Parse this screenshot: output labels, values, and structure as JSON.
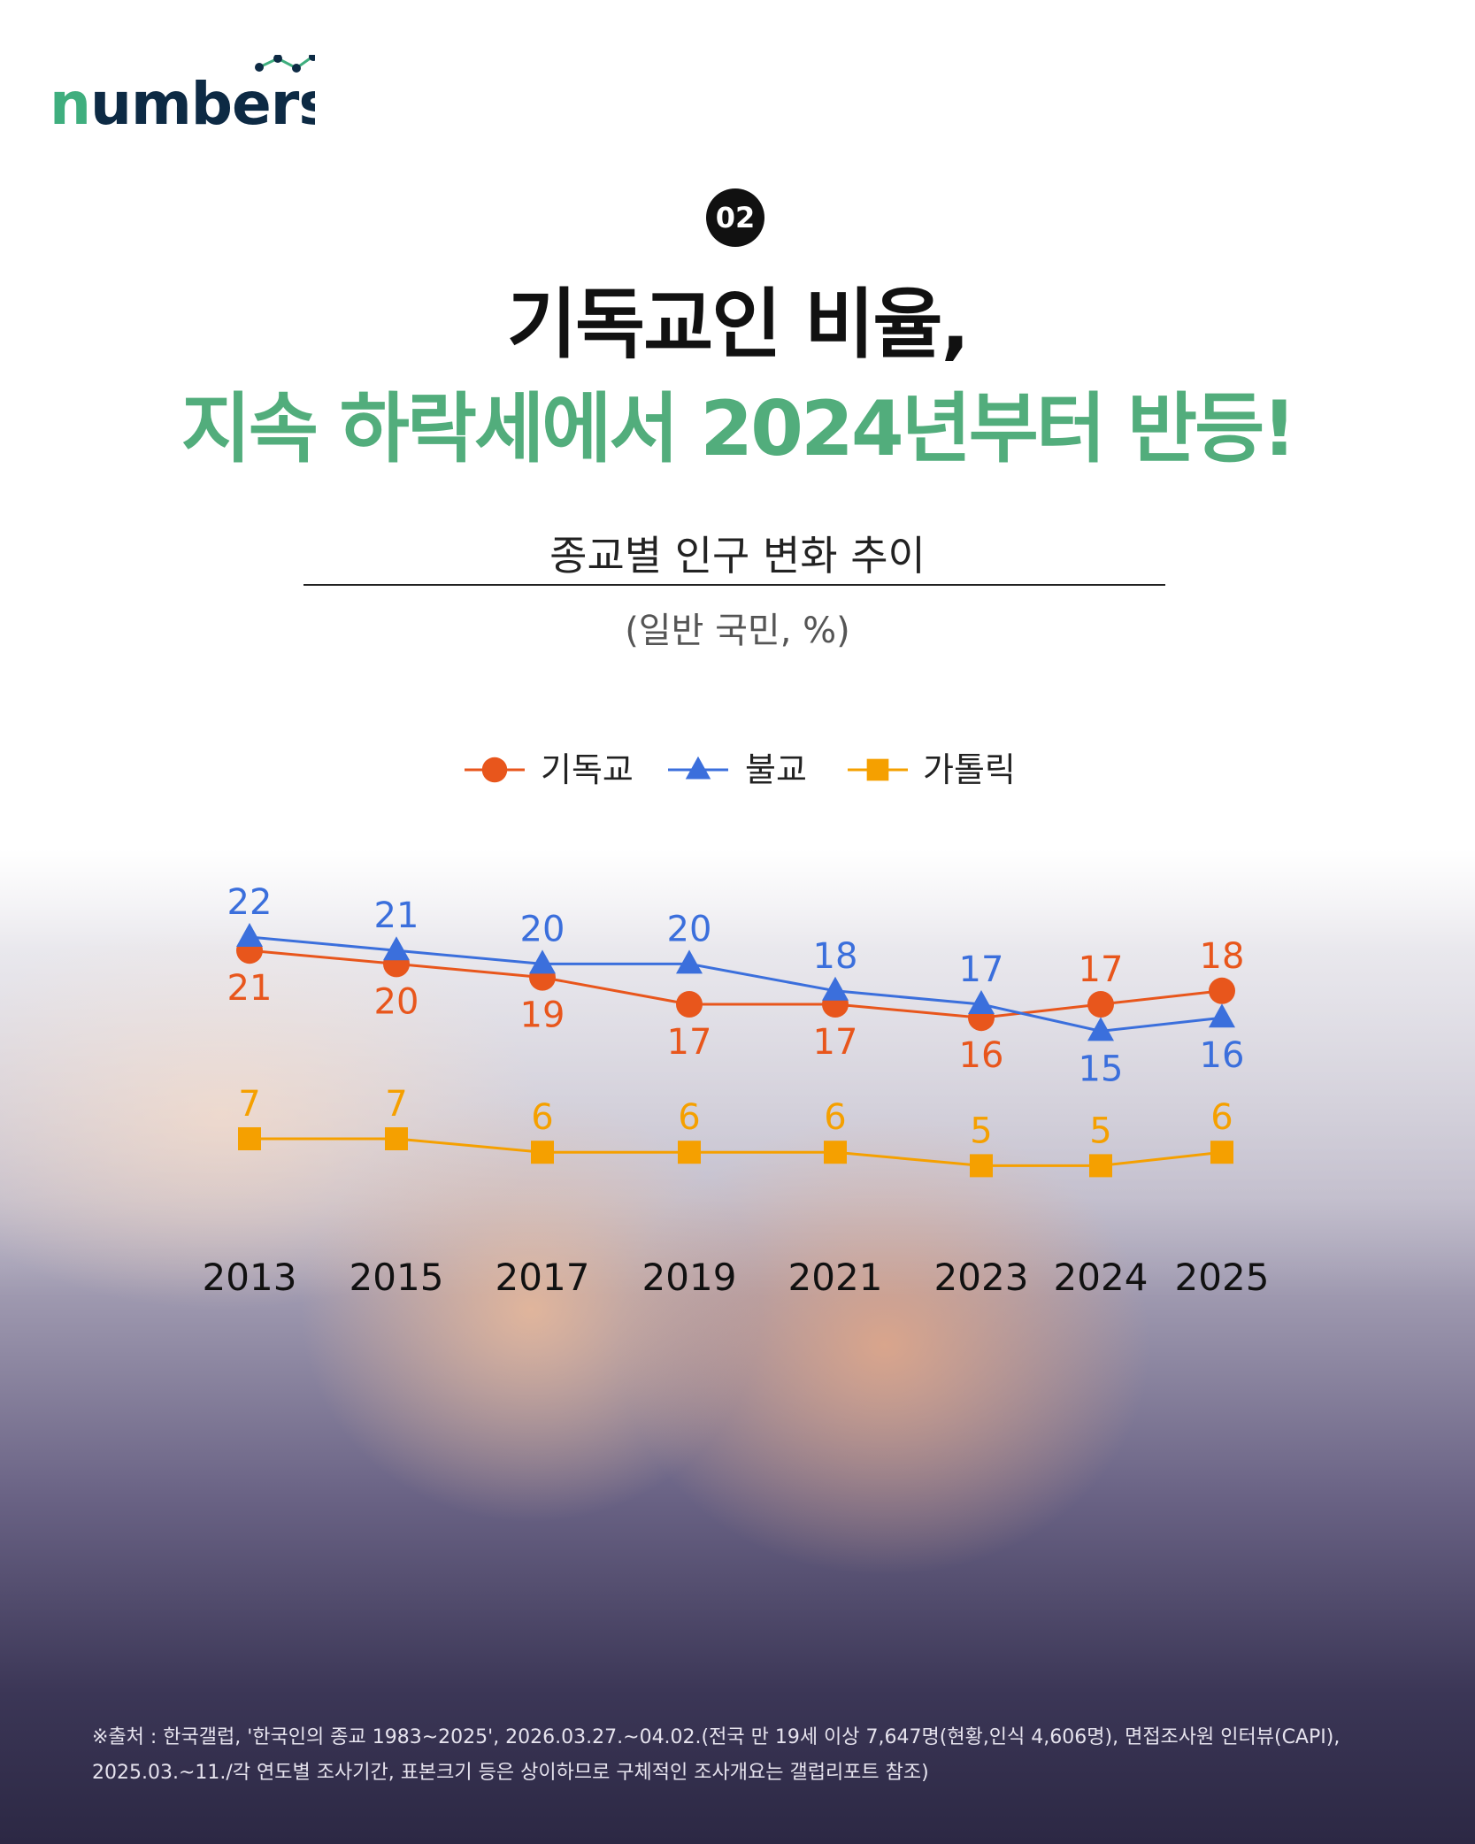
{
  "brand": {
    "logo_text": "numbers",
    "green": "#3fae7e",
    "navy": "#0d2a44"
  },
  "header": {
    "badge": "02",
    "title_line1": "기독교인 비율,",
    "title_line2": "지속 하락세에서 2024년부터 반등!",
    "accent_color": "#52ad7c"
  },
  "chart_data": {
    "type": "line",
    "title": "종교별 인구 변화 추이",
    "subtitle": "(일반 국민, %)",
    "categories": [
      "2013",
      "2015",
      "2017",
      "2019",
      "2021",
      "2023",
      "2024",
      "2025"
    ],
    "legend_position": "top-center",
    "grid": false,
    "series": [
      {
        "name": "기독교",
        "marker": "circle",
        "color": "#e8561c",
        "values": [
          21,
          20,
          19,
          17,
          17,
          16,
          17,
          18
        ]
      },
      {
        "name": "불교",
        "marker": "triangle",
        "color": "#3b6fdc",
        "values": [
          22,
          21,
          20,
          20,
          18,
          17,
          15,
          16
        ]
      },
      {
        "name": "가톨릭",
        "marker": "square",
        "color": "#f5a000",
        "values": [
          7,
          7,
          6,
          6,
          6,
          5,
          5,
          6
        ]
      }
    ]
  },
  "footnote": {
    "line1": "※출처 : 한국갤럽, '한국인의 종교 1983~2025', 2026.03.27.~04.02.(전국 만 19세 이상 7,647명(현황,인식 4,606명), 면접조사원 인터뷰(CAPI),",
    "line2": "2025.03.~11./각 연도별 조사기간, 표본크기 등은 상이하므로 구체적인 조사개요는 갤럽리포트 참조)"
  }
}
